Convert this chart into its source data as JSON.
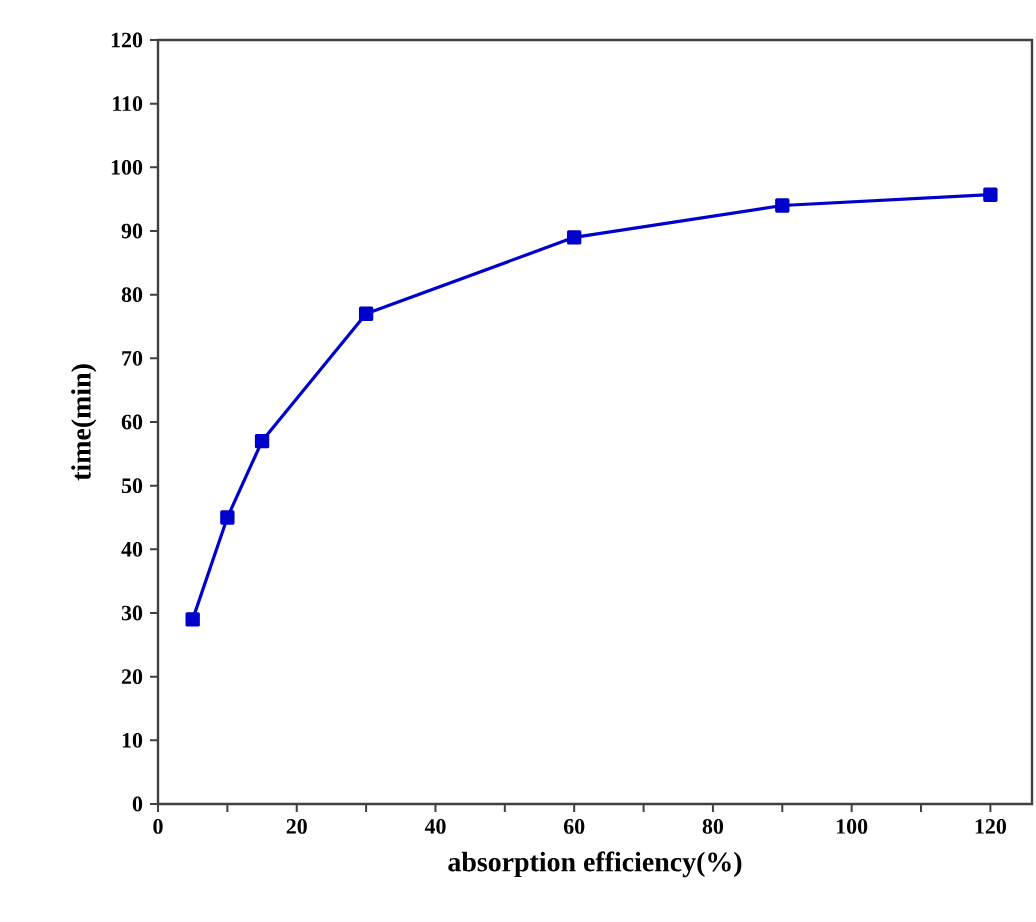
{
  "chart_data": {
    "type": "line",
    "xlabel": "absorption efficiency(%)",
    "ylabel": "time(min)",
    "x": [
      5,
      10,
      15,
      30,
      60,
      90,
      120
    ],
    "series": [
      {
        "color": "#0000cc",
        "values": [
          29,
          45,
          57,
          77,
          89,
          94,
          95.7
        ]
      }
    ],
    "marker": "square",
    "line_style": "solid",
    "xlim": [
      0,
      126
    ],
    "ylim": [
      0,
      120
    ],
    "xticks": [
      0,
      {
        "value": 10,
        "label": null
      },
      20,
      {
        "value": 30,
        "label": null
      },
      40,
      {
        "value": 50,
        "label": null
      },
      60,
      {
        "value": 70,
        "label": null
      },
      80,
      {
        "value": 90,
        "label": null
      },
      100,
      {
        "value": 110,
        "label": null
      },
      120
    ],
    "yticks": [
      0,
      10,
      20,
      30,
      40,
      50,
      60,
      70,
      80,
      90,
      100,
      110,
      120
    ]
  }
}
